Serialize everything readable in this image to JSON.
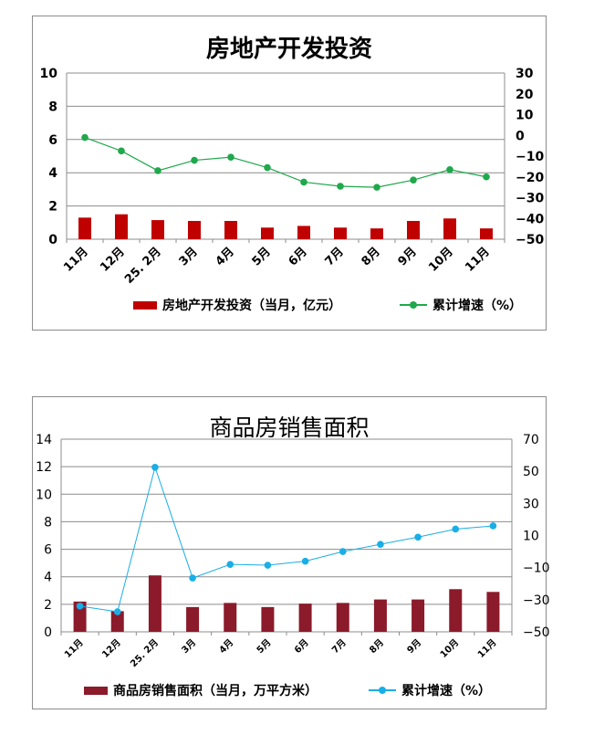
{
  "chart_data": [
    {
      "type": "bar+line",
      "title": "房地产开发投资",
      "categories": [
        "11月",
        "12月",
        "25. 2月",
        "3月",
        "4月",
        "5月",
        "6月",
        "7月",
        "8月",
        "9月",
        "10月",
        "11月"
      ],
      "series": [
        {
          "name": "房地产开发投资（当月，亿元）",
          "type": "bar",
          "axis": "left",
          "values": [
            1.3,
            1.5,
            1.15,
            1.1,
            1.1,
            0.7,
            0.8,
            0.7,
            0.65,
            1.1,
            1.25,
            0.65
          ]
        },
        {
          "name": "累计增速（%）",
          "type": "line",
          "axis": "right",
          "values": [
            -1,
            -7.5,
            -17,
            -12,
            -10.5,
            -15.5,
            -22.5,
            -24.5,
            -25,
            -21.5,
            -16.5,
            -20
          ]
        }
      ],
      "left_axis": {
        "ylim": [
          0,
          10
        ],
        "ticks": [
          0,
          2,
          4,
          6,
          8,
          10
        ]
      },
      "right_axis": {
        "ylim": [
          -50,
          30
        ],
        "ticks": [
          -50,
          -40,
          -30,
          -20,
          -10,
          0,
          10,
          20,
          30
        ]
      },
      "grid": true,
      "legend": "bottom",
      "colors": {
        "bar": "#c00000",
        "line": "#1fa84c"
      }
    },
    {
      "type": "bar+line",
      "title": "商品房销售面积",
      "categories": [
        "11月",
        "12月",
        "25. 2月",
        "3月",
        "4月",
        "5月",
        "6月",
        "7月",
        "8月",
        "9月",
        "10月",
        "11月"
      ],
      "series": [
        {
          "name": "商品房销售面积（当月，万平方米）",
          "type": "bar",
          "axis": "left",
          "values": [
            2.2,
            1.5,
            4.1,
            1.8,
            2.1,
            1.8,
            2.05,
            2.1,
            2.35,
            2.35,
            3.1,
            2.9
          ]
        },
        {
          "name": "累计增速（%）",
          "type": "line",
          "axis": "right",
          "values": [
            -34,
            -37.5,
            52.5,
            -16.5,
            -8,
            -8.5,
            -6,
            0,
            4.5,
            9,
            14,
            16
          ]
        }
      ],
      "left_axis": {
        "ylim": [
          0,
          14
        ],
        "ticks": [
          0,
          2,
          4,
          6,
          8,
          10,
          12,
          14
        ]
      },
      "right_axis": {
        "ylim": [
          -50,
          70
        ],
        "ticks": [
          -50,
          -30,
          -10,
          10,
          30,
          50,
          70
        ]
      },
      "grid": true,
      "legend": "bottom",
      "colors": {
        "bar": "#8b1a2b",
        "line": "#19aee6"
      }
    }
  ]
}
